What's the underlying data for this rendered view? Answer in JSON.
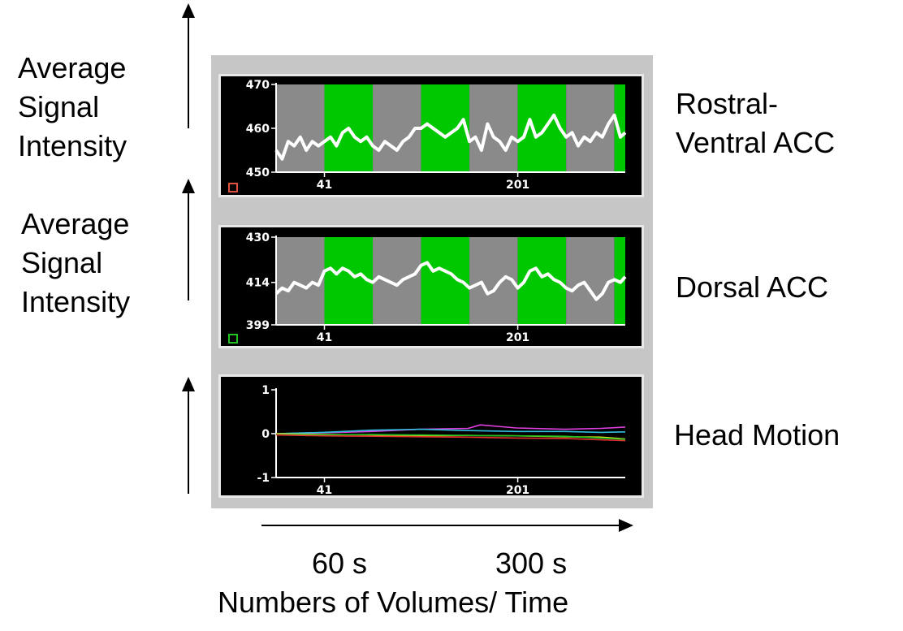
{
  "labels": {
    "y_left_1": [
      "Average",
      "Signal",
      "Intensity"
    ],
    "y_left_2": [
      "Average",
      "Signal",
      "Intensity"
    ],
    "region_1": [
      "Rostral-",
      "Ventral ACC"
    ],
    "region_2": "Dorsal ACC",
    "region_3": "Head Motion",
    "time_60": "60 s",
    "time_300": "300 s",
    "x_title": "Numbers of Volumes/ Time"
  },
  "colors": {
    "gray_block": "#8a8a8a",
    "green_block": "#00c800",
    "signal": "#ffffff",
    "panel_bg": "#000000",
    "marker_1": "#e05040",
    "marker_2": "#20c020",
    "motion": [
      "#e040e0",
      "#30c0e0",
      "#e0e020",
      "#20c020",
      "#e03030"
    ]
  },
  "chart_data": [
    {
      "type": "line",
      "title": "",
      "ylim": [
        450,
        470
      ],
      "yticks": [
        "470",
        "460",
        "450"
      ],
      "xticks": [
        "41",
        "201"
      ],
      "xlim": [
        1,
        290
      ],
      "blocks": [
        {
          "start": 1,
          "end": 40,
          "state": "gray"
        },
        {
          "start": 41,
          "end": 80,
          "state": "green"
        },
        {
          "start": 81,
          "end": 120,
          "state": "gray"
        },
        {
          "start": 121,
          "end": 160,
          "state": "green"
        },
        {
          "start": 161,
          "end": 200,
          "state": "gray"
        },
        {
          "start": 201,
          "end": 240,
          "state": "green"
        },
        {
          "start": 241,
          "end": 280,
          "state": "gray"
        },
        {
          "start": 281,
          "end": 320,
          "state": "green"
        }
      ],
      "series": [
        {
          "x": [
            1,
            6,
            11,
            16,
            21,
            26,
            31,
            36,
            41,
            46,
            51,
            56,
            61,
            66,
            71,
            76,
            81,
            86,
            91,
            96,
            101,
            106,
            111,
            116,
            121,
            126,
            131,
            136,
            141,
            146,
            151,
            156,
            161,
            166,
            171,
            176,
            181,
            186,
            191,
            196,
            201,
            206,
            211,
            216,
            221,
            226,
            231,
            236,
            241,
            246,
            251,
            256,
            261,
            266,
            271,
            276,
            281,
            286,
            290
          ],
          "values": [
            455,
            453,
            457,
            456,
            458,
            455,
            457,
            456,
            457,
            458,
            456,
            459,
            460,
            458,
            457,
            458,
            456,
            455,
            457,
            456,
            455,
            457,
            458,
            460,
            460,
            461,
            460,
            459,
            458,
            459,
            460,
            462,
            457,
            458,
            455,
            461,
            458,
            457,
            455,
            458,
            457,
            458,
            462,
            458,
            459,
            461,
            463,
            460,
            458,
            459,
            456,
            458,
            457,
            459,
            458,
            461,
            463,
            458,
            459
          ]
        }
      ]
    },
    {
      "type": "line",
      "title": "",
      "ylim": [
        399,
        430
      ],
      "yticks": [
        "430",
        "414",
        "399"
      ],
      "xticks": [
        "41",
        "201"
      ],
      "xlim": [
        1,
        290
      ],
      "blocks": [
        {
          "start": 1,
          "end": 40,
          "state": "gray"
        },
        {
          "start": 41,
          "end": 80,
          "state": "green"
        },
        {
          "start": 81,
          "end": 120,
          "state": "gray"
        },
        {
          "start": 121,
          "end": 160,
          "state": "green"
        },
        {
          "start": 161,
          "end": 200,
          "state": "gray"
        },
        {
          "start": 201,
          "end": 240,
          "state": "green"
        },
        {
          "start": 241,
          "end": 280,
          "state": "gray"
        },
        {
          "start": 281,
          "end": 320,
          "state": "green"
        }
      ],
      "series": [
        {
          "x": [
            1,
            6,
            11,
            16,
            21,
            26,
            31,
            36,
            41,
            46,
            51,
            56,
            61,
            66,
            71,
            76,
            81,
            86,
            91,
            96,
            101,
            106,
            111,
            116,
            121,
            126,
            131,
            136,
            141,
            146,
            151,
            156,
            161,
            166,
            171,
            176,
            181,
            186,
            191,
            196,
            201,
            206,
            211,
            216,
            221,
            226,
            231,
            236,
            241,
            246,
            251,
            256,
            261,
            266,
            271,
            276,
            281,
            286,
            290
          ],
          "values": [
            410,
            412,
            411,
            414,
            413,
            412,
            414,
            413,
            418,
            419,
            417,
            419,
            418,
            416,
            417,
            415,
            414,
            416,
            415,
            414,
            413,
            415,
            416,
            417,
            420,
            421,
            418,
            419,
            418,
            417,
            415,
            414,
            412,
            413,
            414,
            410,
            411,
            414,
            416,
            415,
            412,
            414,
            418,
            419,
            416,
            417,
            415,
            414,
            412,
            411,
            413,
            414,
            411,
            408,
            410,
            414,
            415,
            414,
            416
          ]
        }
      ]
    },
    {
      "type": "line",
      "title": "",
      "ylim": [
        -1,
        1
      ],
      "yticks": [
        "1",
        "0",
        "-1"
      ],
      "xticks": [
        "41",
        "201"
      ],
      "xlim": [
        1,
        290
      ],
      "series": [
        {
          "x": [
            1,
            40,
            80,
            120,
            160,
            170,
            200,
            240,
            270,
            290
          ],
          "values": [
            0.0,
            0.02,
            0.05,
            0.1,
            0.12,
            0.2,
            0.13,
            0.1,
            0.12,
            0.15
          ]
        },
        {
          "x": [
            1,
            40,
            80,
            120,
            160,
            200,
            240,
            270,
            290
          ],
          "values": [
            0.0,
            0.03,
            0.08,
            0.1,
            0.07,
            0.05,
            0.05,
            0.03,
            0.04
          ]
        },
        {
          "x": [
            1,
            40,
            80,
            120,
            160,
            200,
            240,
            270,
            290
          ],
          "values": [
            0.0,
            -0.02,
            -0.03,
            -0.05,
            -0.04,
            -0.05,
            -0.07,
            -0.08,
            -0.12
          ]
        },
        {
          "x": [
            1,
            40,
            80,
            120,
            160,
            200,
            240,
            270,
            290
          ],
          "values": [
            -0.02,
            -0.03,
            -0.02,
            -0.03,
            -0.04,
            -0.05,
            -0.06,
            -0.1,
            -0.13
          ]
        },
        {
          "x": [
            1,
            40,
            80,
            120,
            160,
            200,
            240,
            270,
            290
          ],
          "values": [
            -0.03,
            -0.05,
            -0.06,
            -0.07,
            -0.08,
            -0.1,
            -0.11,
            -0.14,
            -0.16
          ]
        }
      ]
    }
  ]
}
